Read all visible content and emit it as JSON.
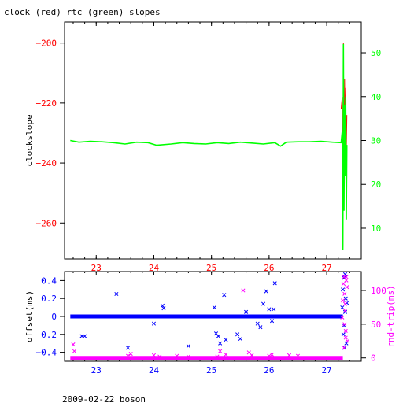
{
  "title": "clock (red) rtc (green) slopes",
  "footer": "2009-02-22 boson",
  "colors": {
    "clock": "#ff0000",
    "rtc": "#00ff00",
    "offset": "#0000ff",
    "rndtrip": "#ff00ff",
    "frame": "#000000"
  },
  "chart_data": [
    {
      "type": "line",
      "title": "clock (red) rtc (green) slopes",
      "xlabel": "",
      "ylabel": "clockslope",
      "y2label": "",
      "xlim": [
        22.45,
        27.6
      ],
      "ylim": [
        -272,
        -193
      ],
      "y2lim": [
        3,
        57
      ],
      "x_ticks": [
        23,
        24,
        25,
        26,
        27
      ],
      "y_ticks": [
        -200,
        -220,
        -240,
        -260
      ],
      "y2_ticks": [
        50,
        40,
        30,
        20,
        10
      ],
      "series": [
        {
          "name": "clock",
          "axis": "left",
          "color": "#ff0000",
          "x": [
            22.55,
            23.0,
            24.0,
            25.0,
            26.0,
            27.0,
            27.25,
            27.27,
            27.28,
            27.29,
            27.3,
            27.31,
            27.32,
            27.33,
            27.34,
            27.35
          ],
          "y": [
            -222,
            -222,
            -222,
            -222,
            -222,
            -222,
            -222,
            -218,
            -268,
            -200,
            -250,
            -212,
            -232,
            -215,
            -236,
            -224
          ]
        },
        {
          "name": "rtc",
          "axis": "right",
          "color": "#00ff00",
          "x": [
            22.55,
            22.7,
            22.9,
            23.1,
            23.3,
            23.5,
            23.7,
            23.9,
            24.05,
            24.3,
            24.5,
            24.7,
            24.9,
            25.1,
            25.3,
            25.5,
            25.7,
            25.9,
            26.1,
            26.2,
            26.3,
            26.5,
            26.7,
            26.9,
            27.1,
            27.25,
            27.27,
            27.28,
            27.29,
            27.3,
            27.31,
            27.32,
            27.33,
            27.34,
            27.35
          ],
          "y": [
            30.0,
            29.6,
            29.8,
            29.7,
            29.5,
            29.2,
            29.6,
            29.5,
            28.9,
            29.2,
            29.5,
            29.3,
            29.2,
            29.5,
            29.3,
            29.6,
            29.4,
            29.2,
            29.5,
            28.7,
            29.6,
            29.7,
            29.7,
            29.8,
            29.6,
            29.5,
            32,
            5,
            52,
            14,
            38,
            22,
            40,
            12,
            29
          ]
        }
      ]
    },
    {
      "type": "scatter",
      "title": "",
      "xlabel": "",
      "ylabel": "offset(ms)",
      "y2label": "rnd-trip(ms)",
      "xlim": [
        22.45,
        27.6
      ],
      "ylim": [
        -0.5,
        0.5
      ],
      "y2lim": [
        -5,
        128
      ],
      "x_ticks": [
        23,
        24,
        25,
        26,
        27
      ],
      "y_ticks": [
        0.4,
        0.2,
        0,
        -0.2,
        -0.4
      ],
      "y2_ticks": [
        100,
        50,
        0
      ],
      "series": [
        {
          "name": "offset",
          "axis": "left",
          "color": "#0000ff",
          "marker": "x",
          "baseline": {
            "x_start": 22.55,
            "x_end": 27.28,
            "y": 0
          },
          "x": [
            22.6,
            22.75,
            22.8,
            23.35,
            23.55,
            24.0,
            24.15,
            24.17,
            24.6,
            25.05,
            25.08,
            25.12,
            25.15,
            25.22,
            25.25,
            25.45,
            25.5,
            25.6,
            25.8,
            25.85,
            25.9,
            25.95,
            26.0,
            26.05,
            26.08,
            26.1,
            27.27,
            27.28,
            27.29,
            27.3,
            27.31,
            27.32,
            27.33,
            27.34,
            27.35,
            27.3,
            27.32
          ],
          "y": [
            0.0,
            -0.22,
            -0.22,
            0.25,
            -0.35,
            -0.08,
            0.12,
            0.09,
            -0.33,
            0.1,
            -0.19,
            -0.22,
            -0.3,
            0.24,
            -0.26,
            -0.2,
            -0.25,
            0.05,
            -0.08,
            -0.12,
            0.14,
            0.28,
            0.08,
            -0.05,
            0.08,
            0.37,
            0.1,
            0.3,
            -0.2,
            0.43,
            -0.35,
            0.47,
            0.2,
            -0.3,
            0.15,
            -0.1,
            0.05
          ]
        },
        {
          "name": "rnd-trip",
          "axis": "right",
          "color": "#ff00ff",
          "marker": "x",
          "baseline": {
            "x_start": 22.55,
            "x_end": 27.28,
            "y": 0
          },
          "x": [
            22.6,
            22.62,
            23.55,
            23.6,
            24.0,
            24.1,
            24.4,
            24.6,
            25.1,
            25.15,
            25.25,
            25.55,
            25.65,
            25.7,
            26.0,
            26.05,
            26.35,
            26.5,
            27.27,
            27.28,
            27.29,
            27.3,
            27.31,
            27.32,
            27.33,
            27.34,
            27.35,
            27.36,
            27.3,
            27.31,
            27.32,
            27.33,
            27.34
          ],
          "y": [
            20,
            10,
            3,
            6,
            4,
            2,
            3,
            2,
            2,
            10,
            5,
            100,
            8,
            4,
            3,
            5,
            4,
            3,
            60,
            85,
            110,
            120,
            95,
            70,
            40,
            120,
            105,
            25,
            15,
            50,
            80,
            30,
            115
          ]
        }
      ]
    }
  ]
}
